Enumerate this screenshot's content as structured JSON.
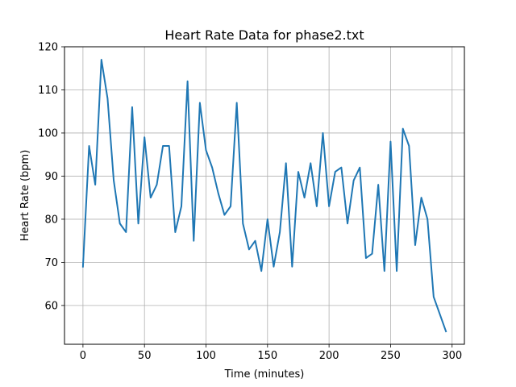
{
  "chart_data": {
    "type": "line",
    "title": "Heart Rate Data for phase2.txt",
    "xlabel": "Time (minutes)",
    "ylabel": "Heart Rate (bpm)",
    "xlim": [
      -15,
      310
    ],
    "ylim": [
      51,
      120
    ],
    "xticks": [
      0,
      50,
      100,
      150,
      200,
      250,
      300
    ],
    "yticks": [
      60,
      70,
      80,
      90,
      100,
      110,
      120
    ],
    "grid": true,
    "series": [
      {
        "color": "#1f77b4",
        "x": [
          0,
          5,
          10,
          15,
          20,
          25,
          30,
          35,
          40,
          45,
          50,
          55,
          60,
          65,
          70,
          75,
          80,
          85,
          90,
          95,
          100,
          105,
          110,
          115,
          120,
          125,
          130,
          135,
          140,
          145,
          150,
          155,
          160,
          165,
          170,
          175,
          180,
          185,
          190,
          195,
          200,
          205,
          210,
          215,
          220,
          225,
          230,
          235,
          240,
          245,
          250,
          255,
          260,
          265,
          270,
          275,
          280,
          285,
          290,
          295
        ],
        "y": [
          69,
          97,
          88,
          117,
          108,
          89,
          79,
          77,
          106,
          79,
          99,
          85,
          88,
          97,
          97,
          77,
          83,
          112,
          75,
          107,
          96,
          92,
          86,
          81,
          83,
          107,
          79,
          73,
          75,
          68,
          80,
          69,
          77,
          93,
          69,
          91,
          85,
          93,
          83,
          100,
          83,
          91,
          92,
          79,
          89,
          92,
          71,
          72,
          88,
          68,
          98,
          68,
          101,
          97,
          74,
          85,
          80,
          62,
          58,
          54
        ]
      }
    ]
  }
}
